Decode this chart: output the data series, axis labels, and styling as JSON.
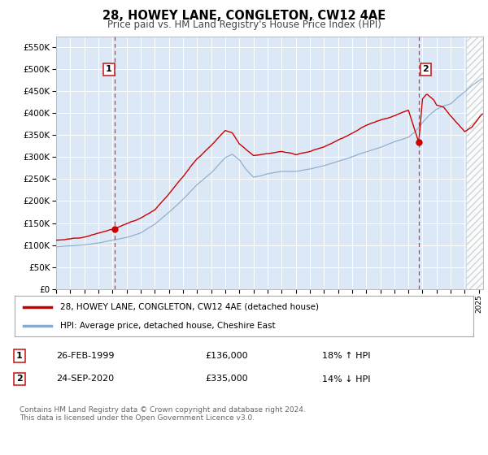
{
  "title": "28, HOWEY LANE, CONGLETON, CW12 4AE",
  "subtitle": "Price paid vs. HM Land Registry's House Price Index (HPI)",
  "background_color": "#f0f0f0",
  "plot_bg_color": "#dce8f5",
  "ylim": [
    0,
    575000
  ],
  "yticks": [
    0,
    50000,
    100000,
    150000,
    200000,
    250000,
    300000,
    350000,
    400000,
    450000,
    500000,
    550000
  ],
  "legend_label_red": "28, HOWEY LANE, CONGLETON, CW12 4AE (detached house)",
  "legend_label_blue": "HPI: Average price, detached house, Cheshire East",
  "sale1_date": "26-FEB-1999",
  "sale1_price": 136000,
  "sale1_hpi": "18% ↑ HPI",
  "sale1_x": 1999.15,
  "sale2_date": "24-SEP-2020",
  "sale2_price": 335000,
  "sale2_hpi": "14% ↓ HPI",
  "sale2_x": 2020.73,
  "footnote": "Contains HM Land Registry data © Crown copyright and database right 2024.\nThis data is licensed under the Open Government Licence v3.0.",
  "red_color": "#cc0000",
  "blue_color": "#88aacc",
  "vline_color": "#dd3333",
  "xlim_left": 1995.0,
  "xlim_right": 2025.3,
  "hatch_start": 2024.08
}
